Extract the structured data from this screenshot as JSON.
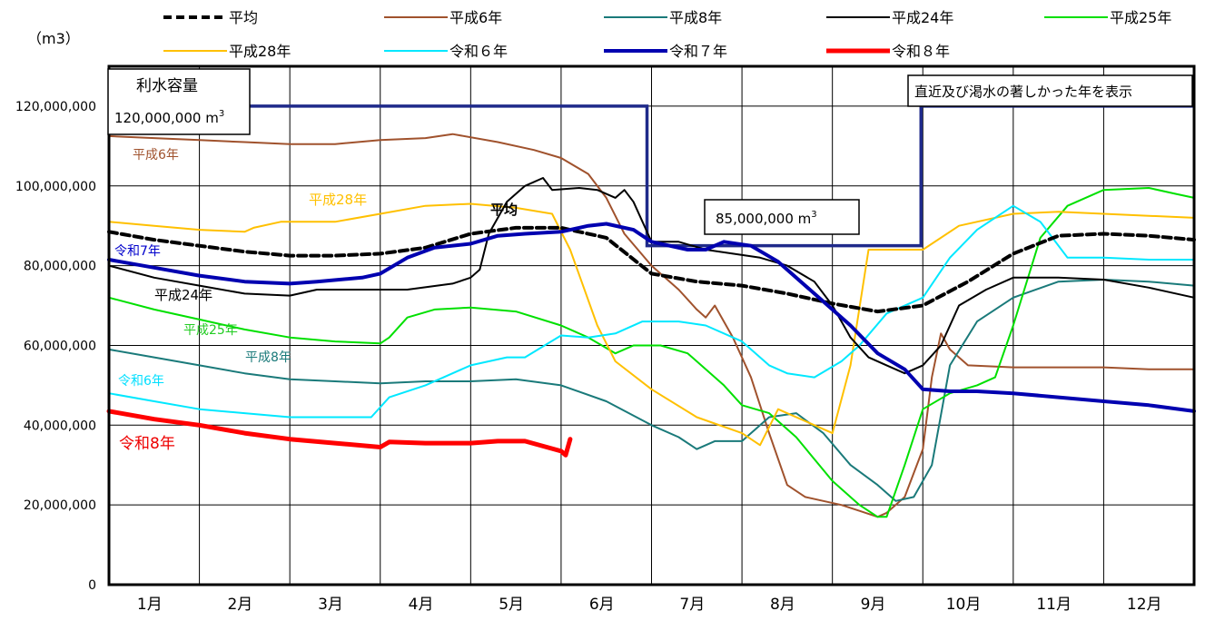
{
  "chart_data": {
    "type": "line",
    "ylabel": "（m3）",
    "ylim": [
      0,
      130000000
    ],
    "ytick_values": [
      0,
      20000000,
      40000000,
      60000000,
      80000000,
      100000000,
      120000000
    ],
    "ytick_labels": [
      "0",
      "20,000,000",
      "40,000,000",
      "60,000,000",
      "80,000,000",
      "100,000,000",
      "120,000,000"
    ],
    "x_unit": "month",
    "xlim": [
      0,
      12
    ],
    "x_categories": [
      "1月",
      "2月",
      "3月",
      "4月",
      "5月",
      "6月",
      "7月",
      "8月",
      "9月",
      "10月",
      "11月",
      "12月"
    ],
    "grid": true,
    "legend_position": "top",
    "annotations": {
      "capacity_title": "利水容量",
      "capacity_value": "120,000,000 m",
      "capacity_sup": "3",
      "summer_value": "85,000,000 m",
      "summer_sup": "3",
      "note": "直近及び渇水の著しかった年を表示"
    },
    "series": [
      {
        "name": "平均",
        "color": "#000000",
        "width": 4,
        "dash": "9 5",
        "inline_label": "平均",
        "inline_color": "#000000",
        "points": [
          [
            0,
            88.5
          ],
          [
            0.5,
            86.5
          ],
          [
            1,
            85
          ],
          [
            1.5,
            83.5
          ],
          [
            2,
            82.5
          ],
          [
            2.5,
            82.5
          ],
          [
            3,
            83
          ],
          [
            3.5,
            84.5
          ],
          [
            4,
            88
          ],
          [
            4.5,
            89.5
          ],
          [
            5,
            89.5
          ],
          [
            5.5,
            87
          ],
          [
            6,
            78
          ],
          [
            6.5,
            76
          ],
          [
            7,
            75
          ],
          [
            7.5,
            73
          ],
          [
            8,
            70.5
          ],
          [
            8.5,
            68.5
          ],
          [
            9,
            70
          ],
          [
            9.5,
            76
          ],
          [
            10,
            83
          ],
          [
            10.5,
            87.5
          ],
          [
            11,
            88
          ],
          [
            11.5,
            87.5
          ],
          [
            12,
            86.5
          ]
        ]
      },
      {
        "name": "平成6年",
        "color": "#a0522d",
        "width": 2,
        "inline_label": "平成6年",
        "inline_color": "#a0522d",
        "points": [
          [
            0,
            112.5
          ],
          [
            0.5,
            112
          ],
          [
            1,
            111.5
          ],
          [
            1.5,
            111
          ],
          [
            2,
            110.5
          ],
          [
            2.5,
            110.5
          ],
          [
            3,
            111.5
          ],
          [
            3.5,
            112
          ],
          [
            3.8,
            113
          ],
          [
            4.3,
            111
          ],
          [
            4.7,
            109
          ],
          [
            5,
            107
          ],
          [
            5.3,
            103
          ],
          [
            5.5,
            97
          ],
          [
            5.7,
            88
          ],
          [
            6,
            80
          ],
          [
            6.3,
            74
          ],
          [
            6.5,
            69
          ],
          [
            6.6,
            67
          ],
          [
            6.7,
            70
          ],
          [
            6.9,
            62
          ],
          [
            7.1,
            52
          ],
          [
            7.3,
            38
          ],
          [
            7.5,
            25
          ],
          [
            7.7,
            22
          ],
          [
            7.9,
            21
          ],
          [
            8.1,
            20
          ],
          [
            8.3,
            18.5
          ],
          [
            8.5,
            17
          ],
          [
            8.6,
            18
          ],
          [
            8.8,
            22
          ],
          [
            9,
            34
          ],
          [
            9.1,
            52
          ],
          [
            9.2,
            63
          ],
          [
            9.3,
            59
          ],
          [
            9.5,
            55
          ],
          [
            10,
            54.5
          ],
          [
            10.5,
            54.5
          ],
          [
            11,
            54.5
          ],
          [
            11.5,
            54
          ],
          [
            12,
            54
          ]
        ]
      },
      {
        "name": "平成8年",
        "color": "#1a7a7a",
        "width": 2,
        "inline_label": "平成8年",
        "inline_color": "#1a7a7a",
        "points": [
          [
            0,
            59
          ],
          [
            0.5,
            57
          ],
          [
            1,
            55
          ],
          [
            1.5,
            53
          ],
          [
            2,
            51.5
          ],
          [
            2.5,
            51
          ],
          [
            3,
            50.5
          ],
          [
            3.5,
            51
          ],
          [
            4,
            51
          ],
          [
            4.5,
            51.5
          ],
          [
            5,
            50
          ],
          [
            5.5,
            46
          ],
          [
            6,
            40
          ],
          [
            6.3,
            37
          ],
          [
            6.5,
            34
          ],
          [
            6.7,
            36
          ],
          [
            7,
            36
          ],
          [
            7.3,
            42
          ],
          [
            7.6,
            43
          ],
          [
            7.9,
            38
          ],
          [
            8.2,
            30
          ],
          [
            8.5,
            25
          ],
          [
            8.7,
            21
          ],
          [
            8.9,
            22
          ],
          [
            9.1,
            30
          ],
          [
            9.3,
            55
          ],
          [
            9.6,
            66
          ],
          [
            10,
            72
          ],
          [
            10.5,
            76
          ],
          [
            11,
            76.5
          ],
          [
            11.5,
            76
          ],
          [
            12,
            75
          ]
        ]
      },
      {
        "name": "平成24年",
        "color": "#000000",
        "width": 2,
        "inline_label": "平成24年",
        "inline_color": "#000000",
        "points": [
          [
            0,
            80
          ],
          [
            0.5,
            77
          ],
          [
            1,
            75
          ],
          [
            1.5,
            73
          ],
          [
            2,
            72.5
          ],
          [
            2.3,
            74
          ],
          [
            2.8,
            74
          ],
          [
            3.3,
            74
          ],
          [
            3.8,
            75.5
          ],
          [
            4,
            77
          ],
          [
            4.1,
            79
          ],
          [
            4.2,
            88
          ],
          [
            4.4,
            96
          ],
          [
            4.6,
            100
          ],
          [
            4.8,
            102
          ],
          [
            4.9,
            99
          ],
          [
            5.2,
            99.5
          ],
          [
            5.4,
            99
          ],
          [
            5.6,
            97
          ],
          [
            5.7,
            99
          ],
          [
            5.8,
            96
          ],
          [
            6,
            86
          ],
          [
            6.3,
            86
          ],
          [
            6.6,
            84
          ],
          [
            6.9,
            83
          ],
          [
            7.2,
            82
          ],
          [
            7.5,
            80
          ],
          [
            7.8,
            76
          ],
          [
            8,
            70
          ],
          [
            8.2,
            62
          ],
          [
            8.4,
            57
          ],
          [
            8.6,
            55
          ],
          [
            8.8,
            53
          ],
          [
            9,
            55
          ],
          [
            9.2,
            60
          ],
          [
            9.4,
            70
          ],
          [
            9.7,
            74
          ],
          [
            10,
            77
          ],
          [
            10.5,
            77
          ],
          [
            11,
            76.5
          ],
          [
            11.5,
            74.5
          ],
          [
            12,
            72
          ]
        ]
      },
      {
        "name": "平成25年",
        "color": "#00e000",
        "width": 2,
        "inline_label": "平成25年",
        "inline_color": "#22cc22",
        "points": [
          [
            0,
            72
          ],
          [
            0.5,
            69
          ],
          [
            1,
            66.5
          ],
          [
            1.5,
            64
          ],
          [
            2,
            62
          ],
          [
            2.5,
            61
          ],
          [
            3,
            60.5
          ],
          [
            3.1,
            62
          ],
          [
            3.3,
            67
          ],
          [
            3.6,
            69
          ],
          [
            4,
            69.5
          ],
          [
            4.5,
            68.5
          ],
          [
            5,
            65
          ],
          [
            5.3,
            62
          ],
          [
            5.6,
            58
          ],
          [
            5.8,
            60
          ],
          [
            6.1,
            60
          ],
          [
            6.4,
            58
          ],
          [
            6.8,
            50
          ],
          [
            7,
            45
          ],
          [
            7.3,
            43
          ],
          [
            7.6,
            37
          ],
          [
            8,
            26
          ],
          [
            8.3,
            20
          ],
          [
            8.5,
            17
          ],
          [
            8.6,
            17
          ],
          [
            8.8,
            30
          ],
          [
            9,
            44
          ],
          [
            9.3,
            48
          ],
          [
            9.6,
            50
          ],
          [
            9.8,
            52
          ],
          [
            10,
            65
          ],
          [
            10.3,
            87
          ],
          [
            10.6,
            95
          ],
          [
            11,
            99
          ],
          [
            11.5,
            99.5
          ],
          [
            11.8,
            98
          ],
          [
            12,
            97
          ]
        ]
      },
      {
        "name": "平成28年",
        "color": "#ffc000",
        "width": 2,
        "inline_label": "平成28年",
        "inline_color": "#ffc000",
        "points": [
          [
            0,
            91
          ],
          [
            0.5,
            90
          ],
          [
            1,
            89
          ],
          [
            1.5,
            88.5
          ],
          [
            1.6,
            89.5
          ],
          [
            1.9,
            91
          ],
          [
            2.5,
            91
          ],
          [
            3,
            93
          ],
          [
            3.5,
            95
          ],
          [
            4,
            95.5
          ],
          [
            4.5,
            94.5
          ],
          [
            4.9,
            93
          ],
          [
            5.1,
            84
          ],
          [
            5.4,
            65
          ],
          [
            5.6,
            56
          ],
          [
            6,
            49
          ],
          [
            6.5,
            42
          ],
          [
            7,
            38
          ],
          [
            7.2,
            35
          ],
          [
            7.4,
            44
          ],
          [
            7.8,
            40
          ],
          [
            8,
            38
          ],
          [
            8.2,
            55
          ],
          [
            8.4,
            84
          ],
          [
            8.7,
            84
          ],
          [
            9,
            84
          ],
          [
            9.4,
            90
          ],
          [
            10,
            93
          ],
          [
            10.5,
            93.5
          ],
          [
            11,
            93
          ],
          [
            11.5,
            92.5
          ],
          [
            12,
            92
          ]
        ]
      },
      {
        "name": "令和６年",
        "color": "#00e8ff",
        "width": 2,
        "inline_label": "令和6年",
        "inline_color": "#00dfff",
        "points": [
          [
            0,
            48
          ],
          [
            0.5,
            46
          ],
          [
            1,
            44
          ],
          [
            1.5,
            43
          ],
          [
            2,
            42
          ],
          [
            2.5,
            42
          ],
          [
            2.9,
            42
          ],
          [
            3.1,
            47
          ],
          [
            3.5,
            50
          ],
          [
            3.8,
            53
          ],
          [
            4,
            55
          ],
          [
            4.4,
            57
          ],
          [
            4.6,
            57
          ],
          [
            5,
            62.5
          ],
          [
            5.3,
            62
          ],
          [
            5.6,
            63
          ],
          [
            5.9,
            66
          ],
          [
            6.3,
            66
          ],
          [
            6.6,
            65
          ],
          [
            7,
            61
          ],
          [
            7.3,
            55
          ],
          [
            7.5,
            53
          ],
          [
            7.8,
            52
          ],
          [
            8.1,
            56
          ],
          [
            8.3,
            60
          ],
          [
            8.6,
            68
          ],
          [
            9,
            72
          ],
          [
            9.3,
            82
          ],
          [
            9.6,
            89
          ],
          [
            10,
            95
          ],
          [
            10.3,
            91
          ],
          [
            10.6,
            82
          ],
          [
            11,
            82
          ],
          [
            11.5,
            81.5
          ],
          [
            12,
            81.5
          ]
        ]
      },
      {
        "name": "令和７年",
        "color": "#0000b0",
        "width": 4,
        "inline_label": "令和7年",
        "inline_color": "#0000cc",
        "points": [
          [
            0,
            81.5
          ],
          [
            0.5,
            79.5
          ],
          [
            1,
            77.5
          ],
          [
            1.5,
            76
          ],
          [
            2,
            75.5
          ],
          [
            2.3,
            76
          ],
          [
            2.8,
            77
          ],
          [
            3,
            78
          ],
          [
            3.3,
            82
          ],
          [
            3.6,
            84.5
          ],
          [
            4,
            85.5
          ],
          [
            4.3,
            87.5
          ],
          [
            4.6,
            88
          ],
          [
            5,
            88.5
          ],
          [
            5.3,
            90
          ],
          [
            5.5,
            90.5
          ],
          [
            5.8,
            89
          ],
          [
            6,
            86
          ],
          [
            6.4,
            84
          ],
          [
            6.6,
            84
          ],
          [
            6.8,
            86
          ],
          [
            7.1,
            85
          ],
          [
            7.4,
            81
          ],
          [
            7.8,
            73
          ],
          [
            8.2,
            65
          ],
          [
            8.5,
            58
          ],
          [
            8.8,
            54
          ],
          [
            9,
            49
          ],
          [
            9.3,
            48.5
          ],
          [
            9.6,
            48.5
          ],
          [
            10,
            48
          ],
          [
            10.5,
            47
          ],
          [
            11,
            46
          ],
          [
            11.5,
            45
          ],
          [
            12,
            43.5
          ]
        ]
      },
      {
        "name": "令和８年",
        "color": "#ff0000",
        "width": 5,
        "inline_label": "令和8年",
        "inline_color": "#ee0000",
        "points": [
          [
            0,
            43.5
          ],
          [
            0.5,
            41.5
          ],
          [
            1,
            40
          ],
          [
            1.5,
            38
          ],
          [
            2,
            36.5
          ],
          [
            2.5,
            35.5
          ],
          [
            3,
            34.5
          ],
          [
            3.1,
            35.8
          ],
          [
            3.5,
            35.5
          ],
          [
            4,
            35.5
          ],
          [
            4.3,
            36
          ],
          [
            4.6,
            36
          ],
          [
            5,
            33.5
          ],
          [
            5.05,
            32.5
          ],
          [
            5.1,
            36.5
          ]
        ]
      }
    ]
  }
}
